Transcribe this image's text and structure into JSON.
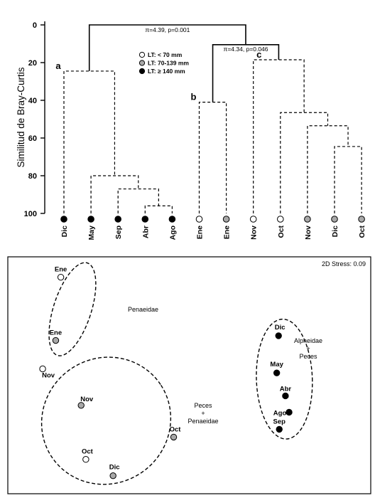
{
  "chart_data": [
    {
      "type": "dendrogram",
      "ylabel": "Similitud de Bray-Curtis",
      "yticks": [
        "0",
        "20",
        "40",
        "60",
        "80",
        "100"
      ],
      "ylim": [
        0,
        100
      ],
      "legend": [
        {
          "label": "LT: < 70 mm",
          "fill": "#ffffff"
        },
        {
          "label": "LT:  70-139 mm",
          "fill": "#a8a8a8"
        },
        {
          "label": "LT: ≥ 140 mm",
          "fill": "#000000"
        }
      ],
      "leaves": [
        {
          "label": "Dic",
          "group": "large"
        },
        {
          "label": "May",
          "group": "large"
        },
        {
          "label": "Sep",
          "group": "large"
        },
        {
          "label": "Abr",
          "group": "large"
        },
        {
          "label": "Ago",
          "group": "large"
        },
        {
          "label": "Ene",
          "group": "small"
        },
        {
          "label": "Ene",
          "group": "medium"
        },
        {
          "label": "Nov",
          "group": "small"
        },
        {
          "label": "Oct",
          "group": "small"
        },
        {
          "label": "Nov",
          "group": "medium"
        },
        {
          "label": "Dic",
          "group": "medium"
        },
        {
          "label": "Oct",
          "group": "medium"
        }
      ],
      "merges": [
        {
          "id": "m1",
          "children": [
            "L3",
            "L4"
          ],
          "similarity": 96,
          "style": "dashed"
        },
        {
          "id": "m2",
          "children": [
            "L2",
            "m1"
          ],
          "similarity": 87,
          "style": "dashed"
        },
        {
          "id": "m3",
          "children": [
            "L1",
            "m2"
          ],
          "similarity": 80,
          "style": "dashed"
        },
        {
          "id": "m4",
          "children": [
            "L0",
            "m3"
          ],
          "similarity": 24.5,
          "style": "dashed"
        },
        {
          "id": "m5",
          "children": [
            "L5",
            "L6"
          ],
          "similarity": 41,
          "style": "dashed"
        },
        {
          "id": "m6",
          "children": [
            "L10",
            "L11"
          ],
          "similarity": 64.5,
          "style": "dashed"
        },
        {
          "id": "m7",
          "children": [
            "L9",
            "m6"
          ],
          "similarity": 53.5,
          "style": "dashed"
        },
        {
          "id": "m8",
          "children": [
            "L8",
            "m7"
          ],
          "similarity": 46.5,
          "style": "dashed"
        },
        {
          "id": "m9",
          "children": [
            "L7",
            "m8"
          ],
          "similarity": 18.5,
          "style": "dashed"
        },
        {
          "id": "m10",
          "children": [
            "m5",
            "m9"
          ],
          "similarity": 10.5,
          "style": "solid"
        },
        {
          "id": "m11",
          "children": [
            "m4",
            "m10"
          ],
          "similarity": 0,
          "style": "solid"
        }
      ],
      "annotations": [
        {
          "text": "π=4.39, p=0.001",
          "attach": "m11"
        },
        {
          "text": "π=4.34, p=0.046",
          "attach": "m10"
        },
        {
          "text": "a",
          "attach": "m4",
          "bold": true
        },
        {
          "text": "b",
          "attach": "m5",
          "bold": true
        },
        {
          "text": "c",
          "attach": "m9",
          "bold": true
        }
      ]
    },
    {
      "type": "scatter",
      "stress_label": "2D Stress: 0.09",
      "xlim": [
        0,
        100
      ],
      "ylim": [
        0,
        100
      ],
      "points": [
        {
          "label": "Ene",
          "x": 14.6,
          "y": 91.4,
          "group": "small"
        },
        {
          "label": "Ene",
          "x": 13.2,
          "y": 64.7,
          "group": "medium"
        },
        {
          "label": "Nov",
          "x": 9.6,
          "y": 52.7,
          "group": "small"
        },
        {
          "label": "Nov",
          "x": 20.2,
          "y": 37.3,
          "group": "medium"
        },
        {
          "label": "Oct",
          "x": 45.7,
          "y": 23.9,
          "group": "medium"
        },
        {
          "label": "Oct",
          "x": 21.5,
          "y": 14.5,
          "group": "small"
        },
        {
          "label": "Dic",
          "x": 29.0,
          "y": 7.6,
          "group": "medium"
        },
        {
          "label": "Dic",
          "x": 74.6,
          "y": 66.7,
          "group": "large"
        },
        {
          "label": "May",
          "x": 74.1,
          "y": 51.0,
          "group": "large"
        },
        {
          "label": "Abr",
          "x": 76.5,
          "y": 41.3,
          "group": "large"
        },
        {
          "label": "Ago",
          "x": 77.5,
          "y": 34.4,
          "group": "large"
        },
        {
          "label": "Sep",
          "x": 74.8,
          "y": 27.2,
          "group": "large"
        }
      ],
      "clusters": [
        {
          "labels": [
            "Penaeidae"
          ],
          "cx": 17.8,
          "cy": 77.9,
          "rx": 5.2,
          "ry": 20.5,
          "rotate": 18
        },
        {
          "labels": [
            "Peces",
            "+",
            "Penaeidae"
          ],
          "cx": 27.1,
          "cy": 30.8,
          "rx": 18.0,
          "ry": 26.5,
          "rotate": -33
        },
        {
          "labels": [
            "Alpheidae",
            "+",
            "Peces"
          ],
          "cx": 76.2,
          "cy": 48.4,
          "rx": 7.7,
          "ry": 25.3,
          "rotate": -2
        }
      ]
    }
  ]
}
